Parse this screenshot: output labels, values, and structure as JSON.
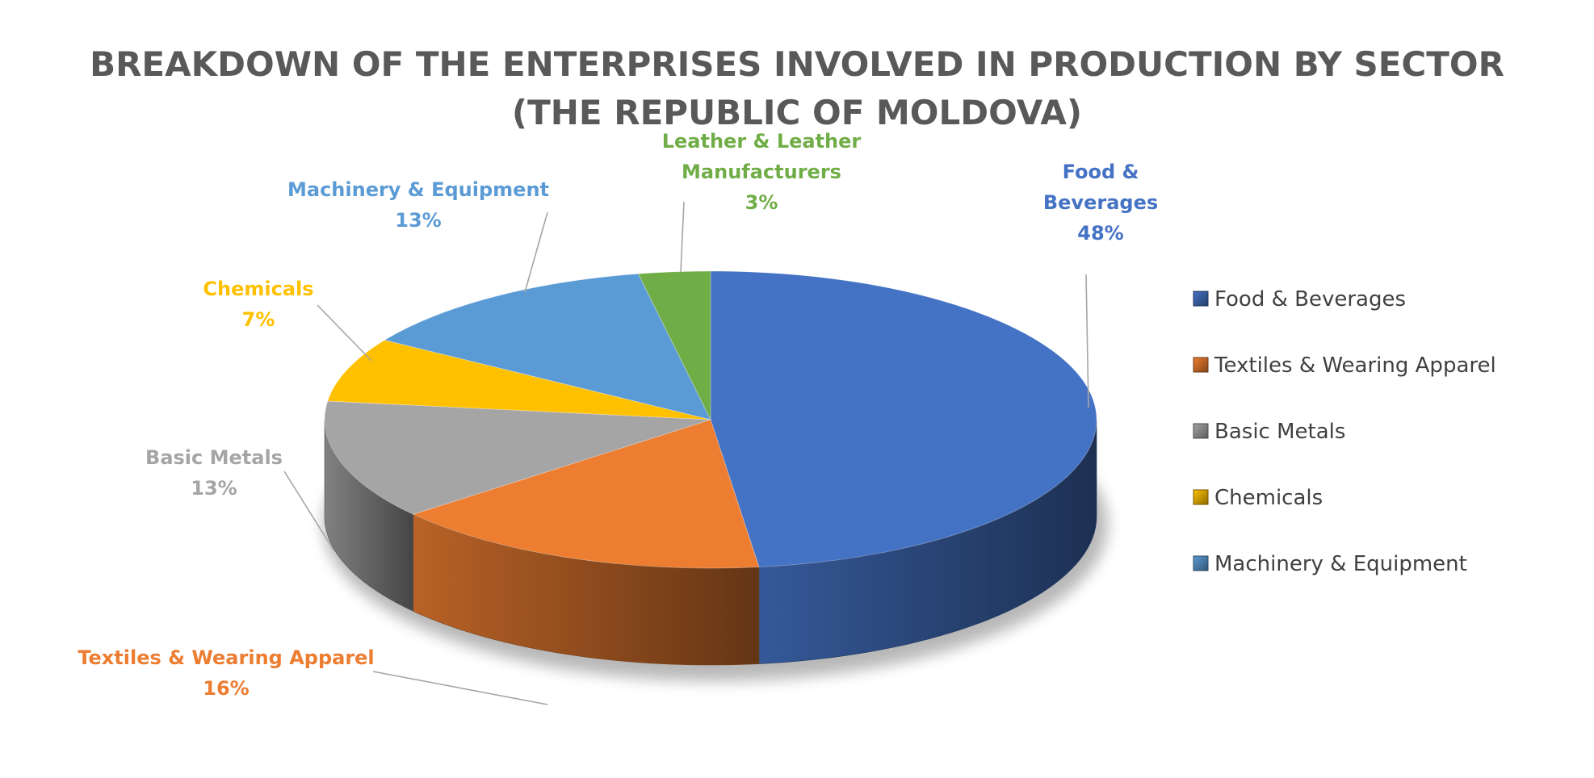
{
  "chart_data": {
    "type": "pie",
    "style": "3d",
    "title": "BREAKDOWN OF THE ENTERPRISES INVOLVED IN PRODUCTION BY SECTOR",
    "subtitle": "(THE REPUBLIC OF MOLDOVA)",
    "legend_position": "right",
    "slices": [
      {
        "name": "Food & Beverages",
        "label_lines": [
          "Food &",
          "Beverages"
        ],
        "value": 48,
        "value_label": "48%",
        "color": "#4472C4",
        "label_color": "#4472C4",
        "in_legend": true
      },
      {
        "name": "Textiles & Wearing Apparel",
        "label_lines": [
          "Textiles & Wearing Apparel"
        ],
        "value": 16,
        "value_label": "16%",
        "color": "#ED7D31",
        "label_color": "#ED7D31",
        "in_legend": true
      },
      {
        "name": "Basic Metals",
        "label_lines": [
          "Basic Metals"
        ],
        "value": 13,
        "value_label": "13%",
        "color": "#A5A5A5",
        "label_color": "#A5A5A5",
        "in_legend": true
      },
      {
        "name": "Chemicals",
        "label_lines": [
          "Chemicals"
        ],
        "value": 7,
        "value_label": "7%",
        "color": "#FFC000",
        "label_color": "#FFC000",
        "in_legend": true
      },
      {
        "name": "Machinery & Equipment",
        "label_lines": [
          "Machinery & Equipment"
        ],
        "value": 13,
        "value_label": "13%",
        "color": "#5B9BD5",
        "label_color": "#5B9BD5",
        "in_legend": true
      },
      {
        "name": "Leather & Leather Manufacturers",
        "label_lines": [
          "Leather & Leather",
          "Manufacturers"
        ],
        "value": 3,
        "value_label": "3%",
        "color": "#70AD47",
        "label_color": "#70AD47",
        "in_legend": false
      }
    ]
  }
}
